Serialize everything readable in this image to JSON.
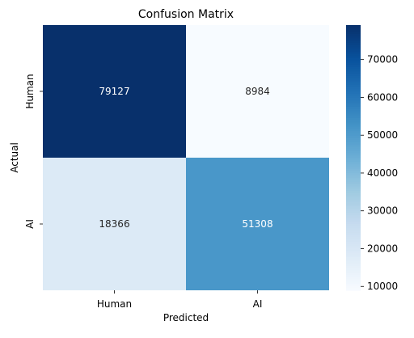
{
  "chart_data": {
    "type": "heatmap",
    "title": "Confusion Matrix",
    "xlabel": "Predicted",
    "ylabel": "Actual",
    "x_categories": [
      "Human",
      "AI"
    ],
    "y_categories": [
      "Human",
      "AI"
    ],
    "values": [
      [
        79127,
        8984
      ],
      [
        18366,
        51308
      ]
    ],
    "colormap": "Blues",
    "colorbar": {
      "min": 8984,
      "max": 79127,
      "ticks": [
        10000,
        20000,
        30000,
        40000,
        50000,
        60000,
        70000
      ]
    },
    "colors": {
      "scale_low": "#f7fbff",
      "scale_high": "#08306b",
      "text_on_dark": "#ffffff",
      "text_on_light": "#262626",
      "axis": "#000000"
    }
  }
}
